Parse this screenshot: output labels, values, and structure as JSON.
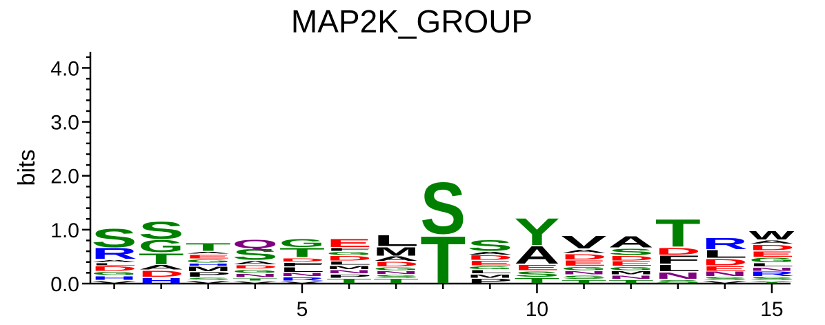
{
  "chart_data": {
    "type": "sequence-logo",
    "title": "MAP2K_GROUP",
    "ylabel": "bits",
    "xlabel": "",
    "ylim": [
      0,
      4.3
    ],
    "y_ticks": [
      "0.0",
      "1.0",
      "2.0",
      "3.0",
      "4.0"
    ],
    "y_tick_values": [
      0,
      1,
      2,
      3,
      4
    ],
    "x_ticks": [
      "5",
      "10",
      "15"
    ],
    "x_tick_values": [
      5,
      10,
      15
    ],
    "grid": false,
    "colors": {
      "green": "#008000",
      "blue": "#0000ff",
      "red": "#ff0000",
      "black": "#000000",
      "purple": "#800080"
    },
    "residue_colors": {
      "S": "green",
      "T": "green",
      "G": "green",
      "Y": "green",
      "C": "green",
      "Q": "purple",
      "N": "purple",
      "R": "blue",
      "K": "blue",
      "H": "blue",
      "D": "red",
      "E": "red",
      "A": "black",
      "V": "black",
      "L": "black",
      "I": "black",
      "M": "black",
      "F": "black",
      "W": "black",
      "P": "black"
    },
    "positions": [
      {
        "pos": 1,
        "stack": [
          [
            "V",
            0.06
          ],
          [
            "H",
            0.09
          ],
          [
            "G",
            0.08
          ],
          [
            "D",
            0.1
          ],
          [
            "L",
            0.06
          ],
          [
            "A",
            0.06
          ],
          [
            "R",
            0.22
          ],
          [
            "S",
            0.37
          ]
        ]
      },
      {
        "pos": 2,
        "stack": [
          [
            "H",
            0.12
          ],
          [
            "D",
            0.13
          ],
          [
            "A",
            0.1
          ],
          [
            "T",
            0.22
          ],
          [
            "G",
            0.25
          ],
          [
            "S",
            0.34
          ]
        ]
      },
      {
        "pos": 3,
        "stack": [
          [
            "V",
            0.06
          ],
          [
            "S",
            0.06
          ],
          [
            "P",
            0.1
          ],
          [
            "M",
            0.1
          ],
          [
            "H",
            0.06
          ],
          [
            "G",
            0.08
          ],
          [
            "E",
            0.09
          ],
          [
            "A",
            0.05
          ],
          [
            "T",
            0.16
          ]
        ]
      },
      {
        "pos": 4,
        "stack": [
          [
            "V",
            0.05
          ],
          [
            "T",
            0.06
          ],
          [
            "N",
            0.08
          ],
          [
            "G",
            0.08
          ],
          [
            "D",
            0.08
          ],
          [
            "A",
            0.08
          ],
          [
            "S",
            0.22
          ],
          [
            "Q",
            0.18
          ]
        ]
      },
      {
        "pos": 5,
        "stack": [
          [
            "V",
            0.05
          ],
          [
            "R",
            0.08
          ],
          [
            "N",
            0.08
          ],
          [
            "L",
            0.1
          ],
          [
            "F",
            0.09
          ],
          [
            "D",
            0.08
          ],
          [
            "T",
            0.19
          ],
          [
            "G",
            0.17
          ]
        ]
      },
      {
        "pos": 6,
        "stack": [
          [
            "T",
            0.1
          ],
          [
            "P",
            0.08
          ],
          [
            "N",
            0.08
          ],
          [
            "M",
            0.08
          ],
          [
            "L",
            0.08
          ],
          [
            "D",
            0.1
          ],
          [
            "G",
            0.08
          ],
          [
            "F",
            0.07
          ],
          [
            "E",
            0.17
          ]
        ]
      },
      {
        "pos": 7,
        "stack": [
          [
            "T",
            0.1
          ],
          [
            "S",
            0.07
          ],
          [
            "N",
            0.07
          ],
          [
            "G",
            0.07
          ],
          [
            "D",
            0.1
          ],
          [
            "A",
            0.1
          ],
          [
            "M",
            0.18
          ],
          [
            "L",
            0.22
          ]
        ]
      },
      {
        "pos": 8,
        "stack": [
          [
            "T",
            0.92
          ],
          [
            "S",
            1.0
          ]
        ]
      },
      {
        "pos": 9,
        "stack": [
          [
            "P",
            0.1
          ],
          [
            "M",
            0.08
          ],
          [
            "L",
            0.08
          ],
          [
            "G",
            0.07
          ],
          [
            "E",
            0.1
          ],
          [
            "D",
            0.1
          ],
          [
            "A",
            0.07
          ],
          [
            "S",
            0.22
          ]
        ]
      },
      {
        "pos": 10,
        "stack": [
          [
            "T",
            0.12
          ],
          [
            "S",
            0.12
          ],
          [
            "E",
            0.12
          ],
          [
            "A",
            0.35
          ],
          [
            "Y",
            0.53
          ]
        ]
      },
      {
        "pos": 11,
        "stack": [
          [
            "T",
            0.08
          ],
          [
            "S",
            0.08
          ],
          [
            "N",
            0.08
          ],
          [
            "G",
            0.08
          ],
          [
            "E",
            0.12
          ],
          [
            "D",
            0.12
          ],
          [
            "A",
            0.08
          ],
          [
            "V",
            0.26
          ]
        ]
      },
      {
        "pos": 12,
        "stack": [
          [
            "T",
            0.08
          ],
          [
            "N",
            0.08
          ],
          [
            "M",
            0.08
          ],
          [
            "G",
            0.08
          ],
          [
            "E",
            0.1
          ],
          [
            "D",
            0.1
          ],
          [
            "S",
            0.14
          ],
          [
            "A",
            0.23
          ]
        ]
      },
      {
        "pos": 13,
        "stack": [
          [
            "S",
            0.08
          ],
          [
            "N",
            0.14
          ],
          [
            "L",
            0.14
          ],
          [
            "F",
            0.17
          ],
          [
            "D",
            0.15
          ],
          [
            "T",
            0.54
          ]
        ]
      },
      {
        "pos": 14,
        "stack": [
          [
            "V",
            0.06
          ],
          [
            "S",
            0.07
          ],
          [
            "N",
            0.1
          ],
          [
            "E",
            0.1
          ],
          [
            "D",
            0.14
          ],
          [
            "L",
            0.16
          ],
          [
            "R",
            0.23
          ]
        ]
      },
      {
        "pos": 15,
        "stack": [
          [
            "Y",
            0.06
          ],
          [
            "S",
            0.07
          ],
          [
            "R",
            0.1
          ],
          [
            "N",
            0.08
          ],
          [
            "L",
            0.08
          ],
          [
            "G",
            0.1
          ],
          [
            "E",
            0.12
          ],
          [
            "D",
            0.12
          ],
          [
            "A",
            0.08
          ],
          [
            "W",
            0.18
          ]
        ]
      }
    ]
  }
}
